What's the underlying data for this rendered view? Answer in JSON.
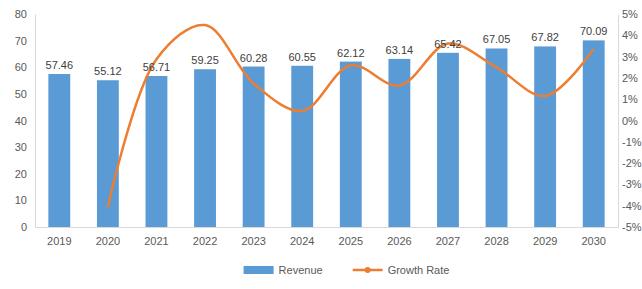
{
  "chart_data": {
    "type": "bar",
    "categories": [
      "2019",
      "2020",
      "2021",
      "2022",
      "2023",
      "2024",
      "2025",
      "2026",
      "2027",
      "2028",
      "2029",
      "2030"
    ],
    "series": [
      {
        "name": "Revenue",
        "type": "bar",
        "color": "#5b9bd5",
        "data_labels": true,
        "values": [
          57.46,
          55.12,
          56.71,
          59.25,
          60.28,
          60.55,
          62.12,
          63.14,
          65.42,
          67.05,
          67.82,
          70.09
        ]
      },
      {
        "name": "Growth Rate",
        "type": "line",
        "color": "#ed7d31",
        "axis": "y2",
        "line_style": "smooth",
        "values": [
          null,
          -4.07,
          2.88,
          4.48,
          1.74,
          0.45,
          2.59,
          1.64,
          3.61,
          2.49,
          1.15,
          3.35
        ]
      }
    ],
    "ylim": [
      0,
      80
    ],
    "yticks": [
      0,
      10,
      20,
      30,
      40,
      50,
      60,
      70,
      80
    ],
    "y2lim": [
      -5,
      5
    ],
    "y2ticks": [
      {
        "value": -5,
        "label": "-5%"
      },
      {
        "value": -4,
        "label": "-4%"
      },
      {
        "value": -3,
        "label": "-3%"
      },
      {
        "value": -2,
        "label": "-2%"
      },
      {
        "value": -1,
        "label": "-1%"
      },
      {
        "value": 0,
        "label": "0%"
      },
      {
        "value": 1,
        "label": "1%"
      },
      {
        "value": 2,
        "label": "2%"
      },
      {
        "value": 3,
        "label": "3%"
      },
      {
        "value": 4,
        "label": "4%"
      },
      {
        "value": 5,
        "label": "5%"
      }
    ],
    "grid": false,
    "legend": "bottom"
  }
}
